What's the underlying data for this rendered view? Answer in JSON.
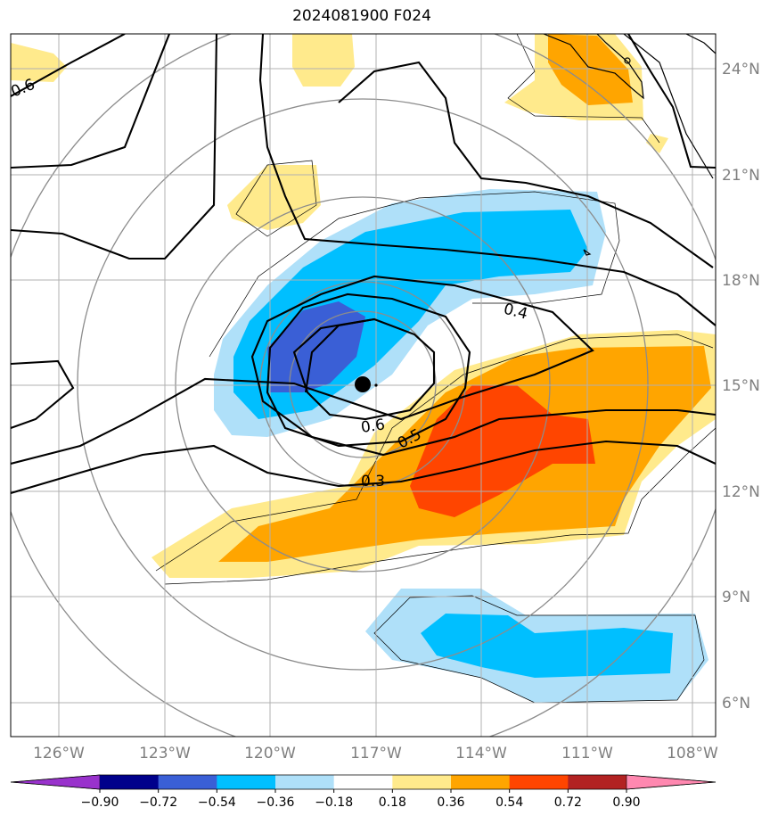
{
  "title": "2024081900 F024",
  "map": {
    "lon_labels": [
      "126°W",
      "123°W",
      "120°W",
      "117°W",
      "114°W",
      "111°W",
      "108°W"
    ],
    "lat_labels": [
      "24°N",
      "21°N",
      "18°N",
      "15°N",
      "12°N",
      "9°N",
      "6°N"
    ],
    "contour_labels": [
      "0.6",
      "0.4",
      "0.6",
      "0.5",
      "0.3"
    ],
    "center_marker": "storm-center",
    "field_colors": {
      "strong_negative": "#3a5fd6",
      "negative": "#00bfff",
      "weak_negative": "#afe0f9",
      "weak_positive": "#ffea8c",
      "positive": "#ffa500",
      "strong_positive": "#ff4500"
    }
  },
  "colorbar": {
    "ticks": [
      "−0.90",
      "−0.72",
      "−0.54",
      "−0.36",
      "−0.18",
      "0.18",
      "0.36",
      "0.54",
      "0.72",
      "0.90"
    ],
    "colors": [
      "#9932cc",
      "#00008b",
      "#3a5fd6",
      "#00bfff",
      "#afe0f9",
      "#ffffff",
      "#ffea8c",
      "#ffa500",
      "#ff4500",
      "#b22222",
      "#ff88b0",
      "#ff88b0"
    ]
  }
}
